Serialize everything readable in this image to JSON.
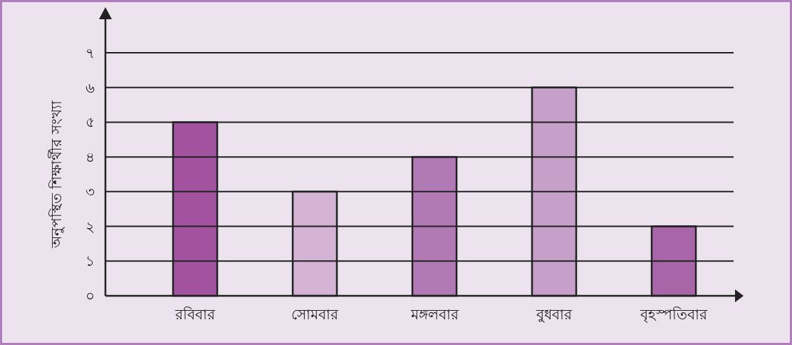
{
  "chart_data": {
    "type": "bar",
    "ylabel": "অনুপস্থিত শিক্ষার্থীর সংখ্যা",
    "categories": [
      "রবিবার",
      "সোমবার",
      "মঙ্গলবার",
      "বুধবার",
      "বৃহস্পতিবার"
    ],
    "values": [
      5,
      3,
      4,
      6,
      2
    ],
    "colors": [
      "#a2529f",
      "#d4b3d5",
      "#b27ab4",
      "#c7a0ca",
      "#a866a9"
    ],
    "ylim": [
      0,
      7
    ],
    "yticks": [
      {
        "value": 0,
        "label": "০"
      },
      {
        "value": 1,
        "label": "১"
      },
      {
        "value": 2,
        "label": "২"
      },
      {
        "value": 3,
        "label": "৩"
      },
      {
        "value": 4,
        "label": "৪"
      },
      {
        "value": 5,
        "label": "৫"
      },
      {
        "value": 6,
        "label": "৬"
      },
      {
        "value": 7,
        "label": "৭"
      }
    ],
    "grid": "y"
  }
}
